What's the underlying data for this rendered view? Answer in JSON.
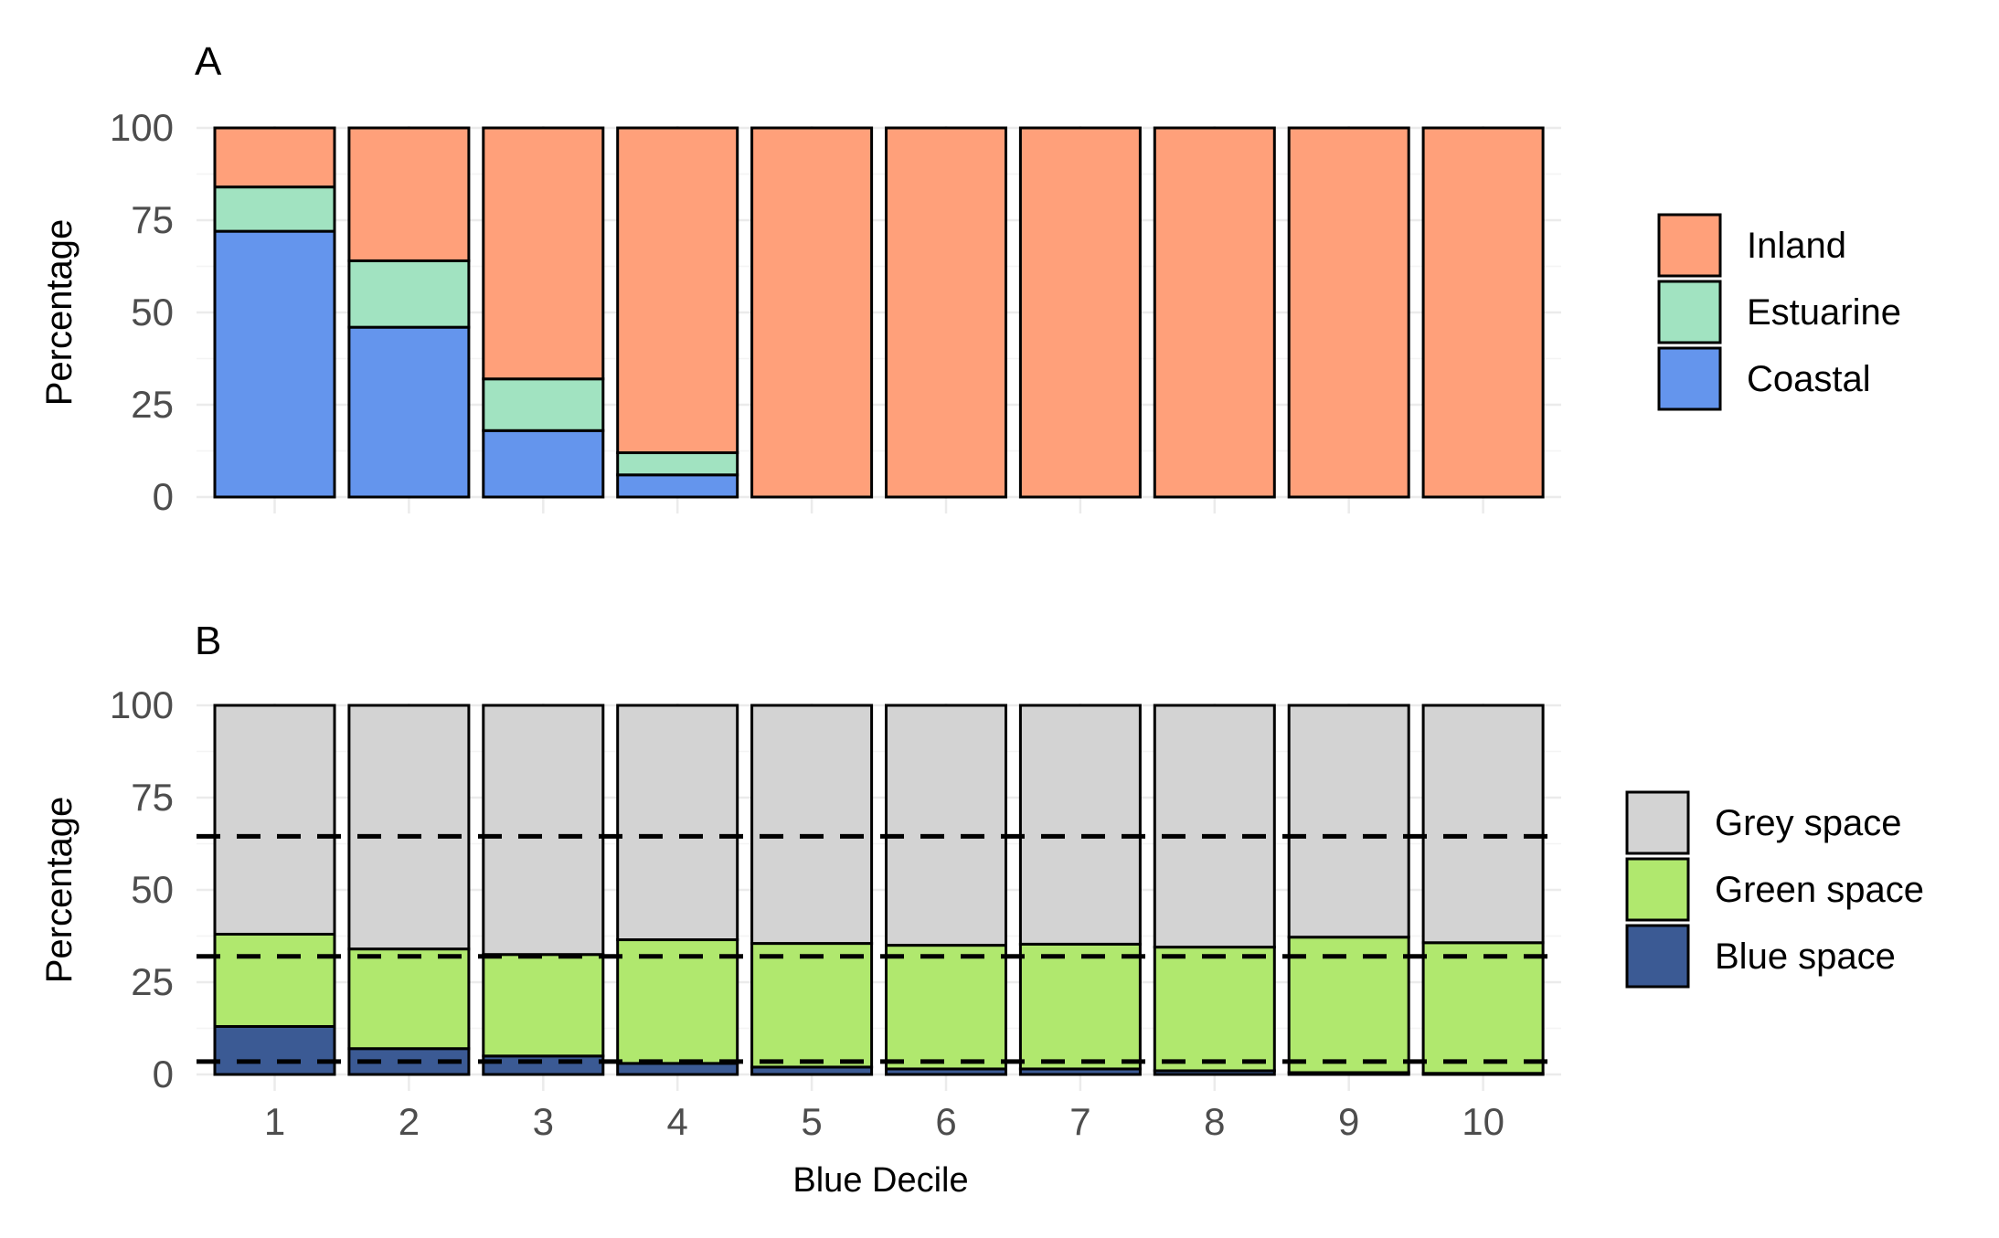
{
  "chart_data": [
    {
      "panel_label": "A",
      "type": "bar",
      "stacked": true,
      "categories": [
        "1",
        "2",
        "3",
        "4",
        "5",
        "6",
        "7",
        "8",
        "9",
        "10"
      ],
      "ylabel": "Percentage",
      "ylim": [
        0,
        100
      ],
      "yticks": [
        0,
        25,
        50,
        75,
        100
      ],
      "grid": true,
      "legend_position": "right",
      "series": [
        {
          "name": "Coastal",
          "color": "#6495ED",
          "values": [
            72,
            46,
            18,
            6,
            0,
            0,
            0,
            0,
            0,
            0
          ]
        },
        {
          "name": "Estuarine",
          "color": "#A1E3C1",
          "values": [
            12,
            18,
            14,
            6,
            0,
            0,
            0,
            0,
            0,
            0
          ]
        },
        {
          "name": "Inland",
          "color": "#FFA07A",
          "values": [
            16,
            36,
            68,
            88,
            100,
            100,
            100,
            100,
            100,
            100
          ]
        }
      ]
    },
    {
      "panel_label": "B",
      "type": "bar",
      "stacked": true,
      "categories": [
        "1",
        "2",
        "3",
        "4",
        "5",
        "6",
        "7",
        "8",
        "9",
        "10"
      ],
      "xlabel": "Blue Decile",
      "ylabel": "Percentage",
      "ylim": [
        0,
        100
      ],
      "yticks": [
        0,
        25,
        50,
        75,
        100
      ],
      "grid": true,
      "legend_position": "right",
      "series": [
        {
          "name": "Blue space",
          "color": "#3B5A94",
          "values": [
            13,
            7,
            5,
            3,
            2,
            1.5,
            1.5,
            1,
            0.5,
            0.3
          ]
        },
        {
          "name": "Green space",
          "color": "#B0E86E",
          "values": [
            25,
            27,
            27.5,
            33.5,
            33.5,
            33.5,
            33.8,
            33.5,
            36.7,
            35.4
          ]
        },
        {
          "name": "Grey space",
          "color": "#D3D3D3",
          "values": [
            62,
            66,
            67.5,
            63.5,
            64.5,
            65,
            64.7,
            65.5,
            62.8,
            64.3
          ]
        }
      ],
      "reference_lines": [
        64.5,
        32,
        3.5
      ]
    }
  ]
}
